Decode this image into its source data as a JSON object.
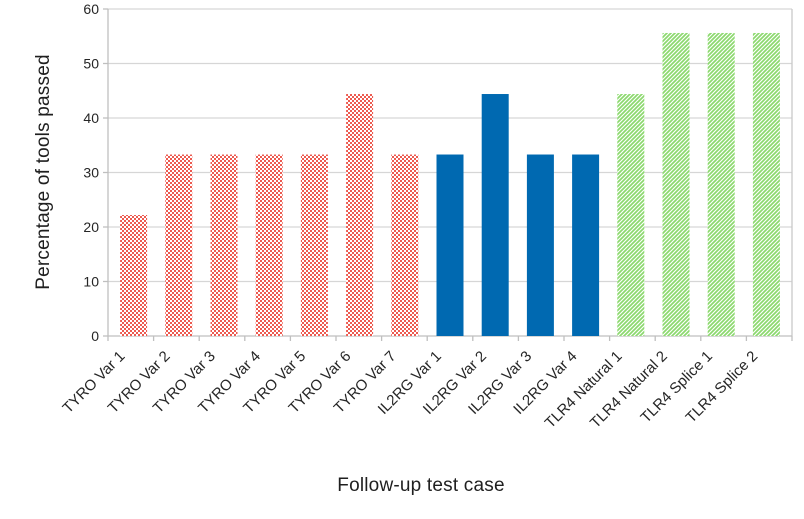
{
  "chart_data": {
    "type": "bar",
    "title": "",
    "xlabel": "Follow-up test case",
    "ylabel": "Percentage of tools passed",
    "ylim": [
      0,
      60
    ],
    "yticks": [
      0,
      10,
      20,
      30,
      40,
      50,
      60
    ],
    "grid": true,
    "legend": false,
    "categories": [
      "TYRO Var 1",
      "TYRO Var 2",
      "TYRO Var 3",
      "TYRO Var 4",
      "TYRO Var 5",
      "TYRO Var 6",
      "TYRO Var 7",
      "IL2RG Var 1",
      "IL2RG Var 2",
      "IL2RG Var 3",
      "IL2RG Var 4",
      "TLR4 Natural 1",
      "TLR4 Natural 2",
      "TLR4 Splice 1",
      "TLR4 Splice 2"
    ],
    "values": [
      22.2,
      33.3,
      33.3,
      33.3,
      33.3,
      44.4,
      33.3,
      33.3,
      44.4,
      33.3,
      33.3,
      44.4,
      55.6,
      55.6,
      55.6
    ],
    "groups": [
      "TYRO",
      "TYRO",
      "TYRO",
      "TYRO",
      "TYRO",
      "TYRO",
      "TYRO",
      "IL2RG",
      "IL2RG",
      "IL2RG",
      "IL2RG",
      "TLR4",
      "TLR4",
      "TLR4",
      "TLR4"
    ],
    "group_styles": {
      "TYRO": {
        "fill": "checker",
        "color": "#ED5A50"
      },
      "IL2RG": {
        "fill": "solid",
        "color": "#0069B1"
      },
      "TLR4": {
        "fill": "diagonal",
        "color": "#8CD96E"
      }
    }
  },
  "colors": {
    "background": "#FFFFFF",
    "gridline": "#D6D6D6",
    "plot_border": "#C9C9C9",
    "axis_line": "#BFBFBF",
    "tick_text": "#262626",
    "title_text": "#1F1F1F"
  }
}
